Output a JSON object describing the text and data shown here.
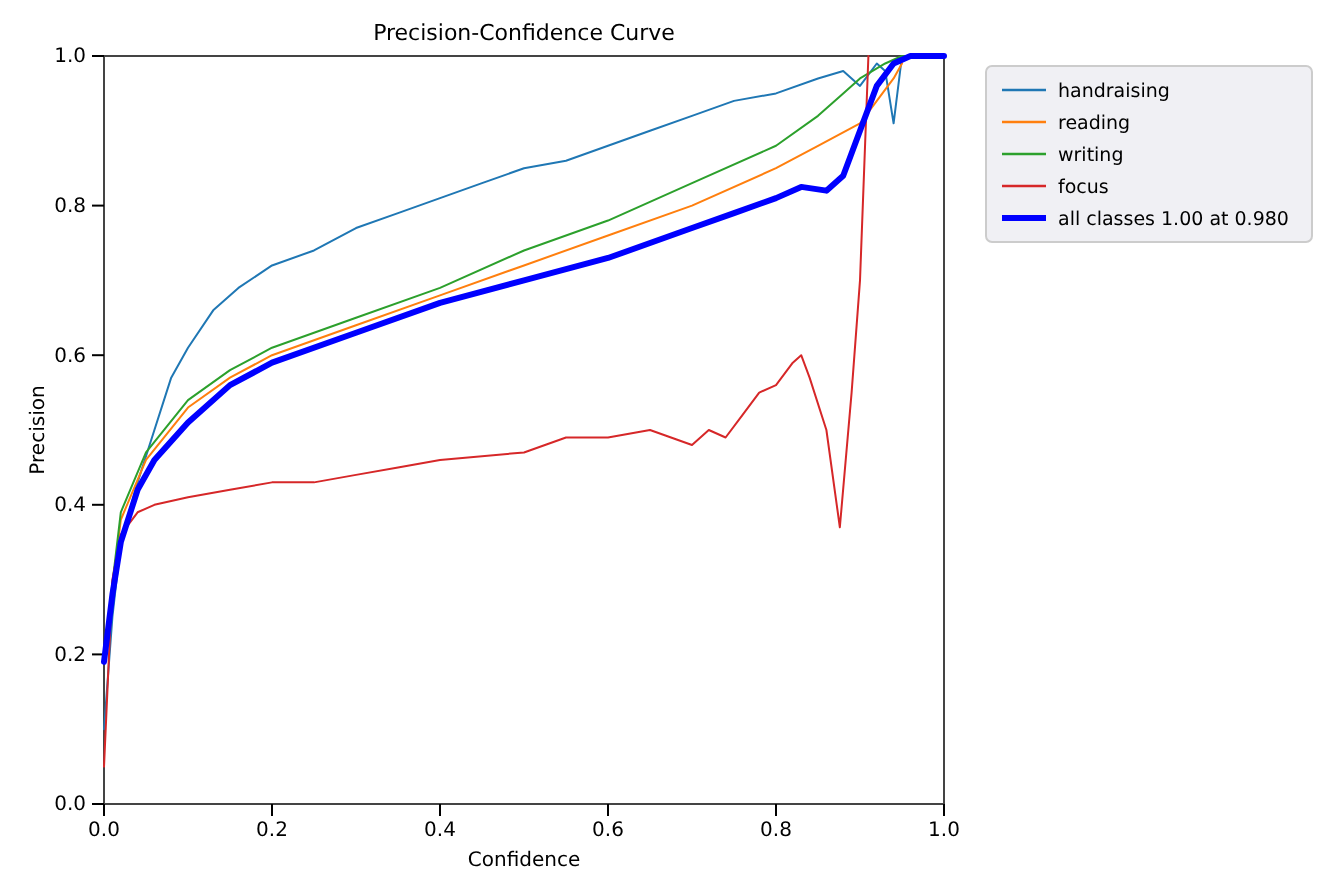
{
  "chart_data": {
    "type": "line",
    "title": "Precision-Confidence Curve",
    "xlabel": "Confidence",
    "ylabel": "Precision",
    "xlim": [
      0,
      1
    ],
    "ylim": [
      0,
      1
    ],
    "xticks": [
      {
        "value": 0,
        "label": "0.0"
      },
      0.2,
      0.4,
      0.6,
      0.8,
      {
        "value": 1,
        "label": "1.0"
      }
    ],
    "yticks": [
      {
        "value": 0,
        "label": "0.0"
      },
      0.2,
      0.4,
      0.6,
      0.8,
      {
        "value": 1,
        "label": "1.0"
      }
    ],
    "legend": "top right",
    "grid": false,
    "marker": "none",
    "line_style": "solid",
    "series": [
      {
        "name": "handraising",
        "color": "#1f77b4",
        "x": [
          0,
          0.01,
          0.02,
          0.04,
          0.06,
          0.08,
          0.1,
          0.13,
          0.16,
          0.2,
          0.25,
          0.3,
          0.35,
          0.4,
          0.45,
          0.5,
          0.55,
          0.6,
          0.65,
          0.7,
          0.75,
          0.8,
          0.85,
          0.88,
          0.9,
          0.92,
          0.93,
          0.94,
          0.95,
          1
        ],
        "values": [
          0.1,
          0.25,
          0.35,
          0.43,
          0.5,
          0.57,
          0.61,
          0.66,
          0.69,
          0.72,
          0.74,
          0.77,
          0.79,
          0.81,
          0.83,
          0.85,
          0.86,
          0.88,
          0.9,
          0.92,
          0.94,
          0.95,
          0.97,
          0.98,
          0.96,
          0.99,
          0.98,
          0.91,
          1.0,
          1.0
        ]
      },
      {
        "name": "reading",
        "color": "#ff7f0e",
        "x": [
          0,
          0.02,
          0.05,
          0.1,
          0.15,
          0.2,
          0.3,
          0.4,
          0.5,
          0.6,
          0.7,
          0.8,
          0.85,
          0.9,
          0.92,
          0.94,
          0.95
        ],
        "values": [
          0.2,
          0.38,
          0.46,
          0.53,
          0.57,
          0.6,
          0.64,
          0.68,
          0.72,
          0.76,
          0.8,
          0.85,
          0.88,
          0.91,
          0.94,
          0.97,
          0.99
        ]
      },
      {
        "name": "writing",
        "color": "#2ca02c",
        "x": [
          0,
          0.02,
          0.05,
          0.1,
          0.15,
          0.2,
          0.3,
          0.4,
          0.5,
          0.6,
          0.7,
          0.8,
          0.85,
          0.88,
          0.9,
          0.93,
          0.95,
          1
        ],
        "values": [
          0.2,
          0.39,
          0.47,
          0.54,
          0.58,
          0.61,
          0.65,
          0.69,
          0.74,
          0.78,
          0.83,
          0.88,
          0.92,
          0.95,
          0.97,
          0.99,
          1.0,
          1.0
        ]
      },
      {
        "name": "focus",
        "color": "#d62728",
        "x": [
          0,
          0.01,
          0.02,
          0.04,
          0.06,
          0.1,
          0.15,
          0.2,
          0.25,
          0.3,
          0.35,
          0.4,
          0.5,
          0.55,
          0.6,
          0.65,
          0.7,
          0.72,
          0.74,
          0.76,
          0.78,
          0.8,
          0.82,
          0.83,
          0.84,
          0.86,
          0.876,
          0.89,
          0.9,
          0.91
        ],
        "values": [
          0.05,
          0.3,
          0.36,
          0.39,
          0.4,
          0.41,
          0.42,
          0.43,
          0.43,
          0.44,
          0.45,
          0.46,
          0.47,
          0.49,
          0.49,
          0.5,
          0.48,
          0.5,
          0.49,
          0.52,
          0.55,
          0.56,
          0.59,
          0.6,
          0.57,
          0.5,
          0.37,
          0.55,
          0.7,
          1.0
        ]
      },
      {
        "name": "all classes 1.00 at 0.980",
        "color": "#0000ff",
        "x": [
          0,
          0.01,
          0.02,
          0.04,
          0.06,
          0.1,
          0.15,
          0.2,
          0.3,
          0.4,
          0.5,
          0.6,
          0.7,
          0.75,
          0.8,
          0.83,
          0.86,
          0.88,
          0.9,
          0.92,
          0.94,
          0.96,
          1
        ],
        "values": [
          0.19,
          0.28,
          0.35,
          0.42,
          0.46,
          0.51,
          0.56,
          0.59,
          0.63,
          0.67,
          0.7,
          0.73,
          0.77,
          0.79,
          0.81,
          0.825,
          0.82,
          0.84,
          0.9,
          0.96,
          0.99,
          1.0,
          1.0
        ]
      }
    ]
  }
}
